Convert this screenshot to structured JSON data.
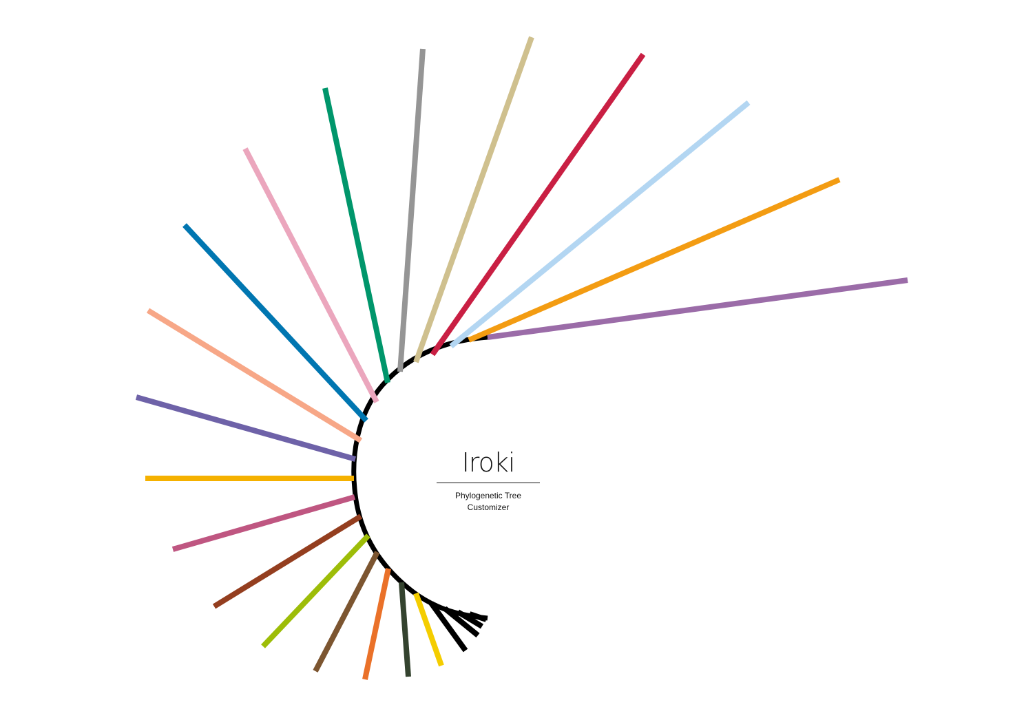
{
  "logo": {
    "title": "Iroki",
    "subtitle_line1": "Phylogenetic Tree",
    "subtitle_line2": "Customizer"
  },
  "tree": {
    "layout": "radial",
    "trunk_color": "#000000",
    "branches": [
      {
        "color": "#9b6ca8"
      },
      {
        "color": "#f39c12"
      },
      {
        "color": "#b3d6f2"
      },
      {
        "color": "#c91f43"
      },
      {
        "color": "#cfc08e"
      },
      {
        "color": "#959595"
      },
      {
        "color": "#00966b"
      },
      {
        "color": "#eba6bd"
      },
      {
        "color": "#0076b1"
      },
      {
        "color": "#f7a787"
      },
      {
        "color": "#6e62a8"
      },
      {
        "color": "#f5b100"
      },
      {
        "color": "#bf5681"
      },
      {
        "color": "#943e1f"
      },
      {
        "color": "#9dbd08"
      },
      {
        "color": "#7c5530"
      },
      {
        "color": "#ea7129"
      },
      {
        "color": "#34432f"
      },
      {
        "color": "#f4cd00"
      },
      {
        "color": "#000000"
      },
      {
        "color": "#000000"
      },
      {
        "color": "#000000"
      },
      {
        "color": "#000000"
      }
    ]
  }
}
